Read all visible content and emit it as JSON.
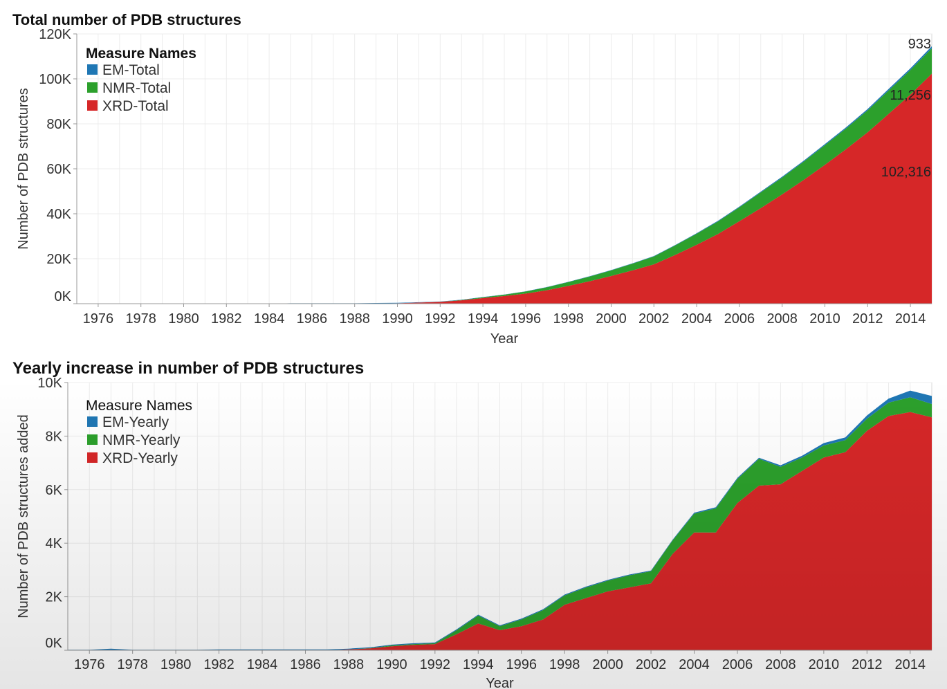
{
  "chart_data": [
    {
      "type": "area",
      "stacked": true,
      "title": "Total number of PDB structures",
      "xlabel": "Year",
      "ylabel": "Number of PDB structures",
      "xlim": [
        1975,
        2015
      ],
      "ylim": [
        0,
        120000
      ],
      "x_ticks": [
        "1976",
        "1978",
        "1980",
        "1982",
        "1984",
        "1986",
        "1988",
        "1990",
        "1992",
        "1994",
        "1996",
        "1998",
        "2000",
        "2002",
        "2004",
        "2006",
        "2008",
        "2010",
        "2012",
        "2014"
      ],
      "y_ticks": [
        0,
        20000,
        40000,
        60000,
        80000,
        100000,
        120000
      ],
      "y_tick_labels": [
        "0K",
        "20K",
        "40K",
        "60K",
        "80K",
        "100K",
        "120K"
      ],
      "legend": {
        "title": "Measure Names",
        "title_bold": true,
        "position": "top-left"
      },
      "grid": true,
      "x": [
        1975,
        1976,
        1977,
        1978,
        1979,
        1980,
        1981,
        1982,
        1983,
        1984,
        1985,
        1986,
        1987,
        1988,
        1989,
        1990,
        1991,
        1992,
        1993,
        1994,
        1995,
        1996,
        1997,
        1998,
        1999,
        2000,
        2001,
        2002,
        2003,
        2004,
        2005,
        2006,
        2007,
        2008,
        2009,
        2010,
        2011,
        2012,
        2013,
        2014,
        2015
      ],
      "series": [
        {
          "name": "XRD-Total",
          "color": "#d62728",
          "values": [
            0,
            0,
            0,
            0,
            0,
            0,
            0,
            0,
            0,
            0,
            0,
            0,
            0,
            0,
            100,
            200,
            500,
            800,
            1500,
            2500,
            3400,
            4500,
            6000,
            7900,
            10000,
            12300,
            14800,
            17500,
            21700,
            26200,
            31000,
            36700,
            42500,
            48600,
            55000,
            61800,
            68800,
            76200,
            84600,
            93000,
            102316
          ]
        },
        {
          "name": "NMR-Total",
          "color": "#2ca02c",
          "values": [
            0,
            0,
            0,
            0,
            0,
            0,
            0,
            0,
            0,
            0,
            0,
            0,
            0,
            0,
            0,
            0,
            0,
            20,
            150,
            350,
            600,
            900,
            1300,
            1700,
            2100,
            2500,
            3000,
            3500,
            4200,
            4900,
            5600,
            6200,
            7000,
            7500,
            8100,
            8700,
            9200,
            9800,
            10400,
            10900,
            11256
          ]
        },
        {
          "name": "EM-Total",
          "color": "#1f77b4",
          "values": [
            0,
            0,
            0,
            0,
            0,
            0,
            0,
            0,
            0,
            0,
            200,
            200,
            200,
            200,
            200,
            200,
            150,
            120,
            100,
            100,
            100,
            100,
            100,
            110,
            120,
            150,
            180,
            200,
            230,
            250,
            280,
            300,
            350,
            400,
            450,
            500,
            560,
            620,
            700,
            800,
            933
          ]
        }
      ],
      "end_labels": [
        "933",
        "11,256",
        "102,316"
      ]
    },
    {
      "type": "area",
      "stacked": true,
      "title": "Yearly increase in number of PDB structures",
      "xlabel": "Year",
      "ylabel": "Number of PDB structures added",
      "xlim": [
        1975,
        2015
      ],
      "ylim": [
        0,
        10000
      ],
      "x_ticks": [
        "1976",
        "1978",
        "1980",
        "1982",
        "1984",
        "1986",
        "1988",
        "1990",
        "1992",
        "1994",
        "1996",
        "1998",
        "2000",
        "2002",
        "2004",
        "2006",
        "2008",
        "2010",
        "2012",
        "2014"
      ],
      "y_ticks": [
        0,
        2000,
        4000,
        6000,
        8000,
        10000
      ],
      "y_tick_labels": [
        "0K",
        "2K",
        "4K",
        "6K",
        "8K",
        "10K"
      ],
      "legend": {
        "title": "Measure Names",
        "title_bold": false,
        "position": "top-left"
      },
      "grid": true,
      "x": [
        1975,
        1976,
        1977,
        1978,
        1979,
        1980,
        1981,
        1982,
        1983,
        1984,
        1985,
        1986,
        1987,
        1988,
        1989,
        1990,
        1991,
        1992,
        1993,
        1994,
        1995,
        1996,
        1997,
        1998,
        1999,
        2000,
        2001,
        2002,
        2003,
        2004,
        2005,
        2006,
        2007,
        2008,
        2009,
        2010,
        2011,
        2012,
        2013,
        2014,
        2015
      ],
      "series": [
        {
          "name": "XRD-Yearly",
          "color": "#d62728",
          "values": [
            0,
            0,
            0,
            0,
            0,
            0,
            0,
            0,
            0,
            0,
            0,
            0,
            0,
            30,
            70,
            150,
            200,
            230,
            600,
            1000,
            750,
            900,
            1150,
            1700,
            1950,
            2200,
            2350,
            2500,
            3600,
            4400,
            4400,
            5500,
            6150,
            6200,
            6700,
            7200,
            7400,
            8200,
            8750,
            8900,
            8700
          ]
        },
        {
          "name": "NMR-Yearly",
          "color": "#2ca02c",
          "values": [
            0,
            0,
            0,
            0,
            0,
            0,
            0,
            0,
            0,
            0,
            0,
            0,
            0,
            0,
            10,
            30,
            30,
            30,
            150,
            300,
            150,
            250,
            350,
            350,
            400,
            400,
            450,
            450,
            500,
            700,
            900,
            900,
            1000,
            650,
            500,
            450,
            450,
            450,
            500,
            550,
            500
          ]
        },
        {
          "name": "EM-Yearly",
          "color": "#1f77b4",
          "values": [
            20,
            20,
            60,
            20,
            20,
            20,
            20,
            30,
            30,
            30,
            30,
            30,
            30,
            30,
            30,
            30,
            30,
            30,
            30,
            30,
            30,
            30,
            30,
            30,
            30,
            30,
            30,
            30,
            30,
            40,
            40,
            40,
            40,
            60,
            70,
            90,
            100,
            120,
            150,
            250,
            300
          ]
        }
      ]
    }
  ]
}
